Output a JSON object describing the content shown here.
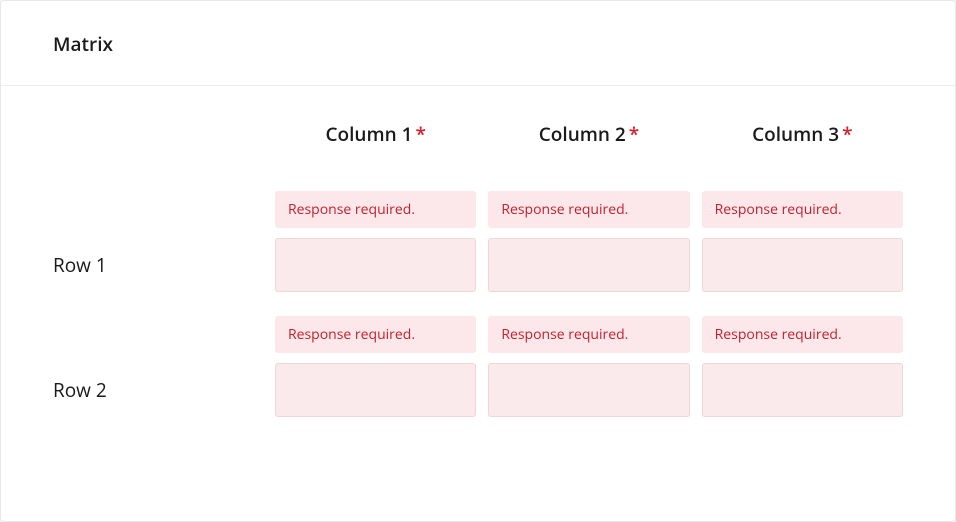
{
  "card": {
    "title": "Matrix"
  },
  "matrix": {
    "columns": [
      {
        "label": "Column 1",
        "required": true
      },
      {
        "label": "Column 2",
        "required": true
      },
      {
        "label": "Column 3",
        "required": true
      }
    ],
    "rows": [
      {
        "label": "Row 1"
      },
      {
        "label": "Row 2"
      }
    ],
    "cells": [
      [
        {
          "error": "Response required.",
          "value": ""
        },
        {
          "error": "Response required.",
          "value": ""
        },
        {
          "error": "Response required.",
          "value": ""
        }
      ],
      [
        {
          "error": "Response required.",
          "value": ""
        },
        {
          "error": "Response required.",
          "value": ""
        },
        {
          "error": "Response required.",
          "value": ""
        }
      ]
    ]
  },
  "colors": {
    "error_bg": "#fce8ea",
    "error_text": "#c51f2d",
    "input_error_bg": "#fbeaec",
    "input_error_border": "#eed6d9",
    "required_asterisk": "#d9212c",
    "text_primary": "#1a1a1a",
    "card_bg": "#ffffff",
    "card_border": "#e8e8e8",
    "divider": "#ececec"
  }
}
